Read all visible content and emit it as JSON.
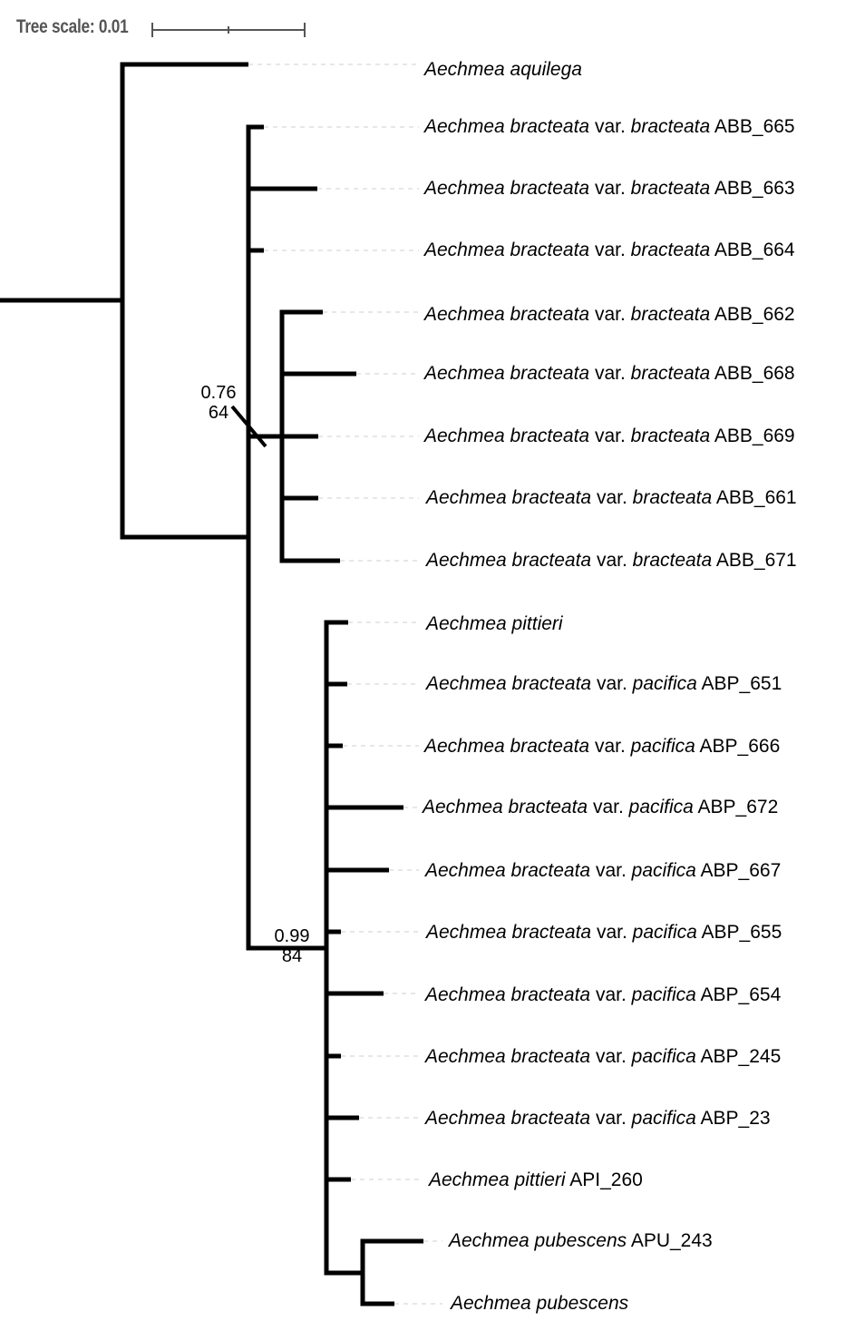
{
  "scale": {
    "label": "Tree scale: 0.01"
  },
  "support_labels": [
    {
      "posterior": "0.76",
      "bootstrap": "64"
    },
    {
      "posterior": "0.99",
      "bootstrap": "84"
    }
  ],
  "leaves": [
    {
      "genus_species": "Aechmea aquilega",
      "var_label": "",
      "variety": "",
      "code": ""
    },
    {
      "genus_species": "Aechmea bracteata",
      "var_label": " var. ",
      "variety": "bracteata",
      "code": " ABB_665"
    },
    {
      "genus_species": "Aechmea bracteata",
      "var_label": " var. ",
      "variety": "bracteata",
      "code": " ABB_663"
    },
    {
      "genus_species": "Aechmea bracteata",
      "var_label": " var. ",
      "variety": "bracteata",
      "code": " ABB_664"
    },
    {
      "genus_species": "Aechmea bracteata",
      "var_label": " var. ",
      "variety": "bracteata",
      "code": " ABB_662"
    },
    {
      "genus_species": "Aechmea bracteata",
      "var_label": " var. ",
      "variety": "bracteata",
      "code": " ABB_668"
    },
    {
      "genus_species": "Aechmea bracteata",
      "var_label": " var. ",
      "variety": "bracteata",
      "code": " ABB_669"
    },
    {
      "genus_species": "Aechmea bracteata",
      "var_label": " var. ",
      "variety": "bracteata",
      "code": " ABB_661"
    },
    {
      "genus_species": "Aechmea bracteata",
      "var_label": " var. ",
      "variety": "bracteata",
      "code": " ABB_671"
    },
    {
      "genus_species": "Aechmea pittieri",
      "var_label": "",
      "variety": "",
      "code": ""
    },
    {
      "genus_species": "Aechmea bracteata",
      "var_label": " var. ",
      "variety": "pacifica",
      "code": " ABP_651"
    },
    {
      "genus_species": "Aechmea bracteata",
      "var_label": " var. ",
      "variety": "pacifica",
      "code": " ABP_666"
    },
    {
      "genus_species": "Aechmea bracteata",
      "var_label": " var. ",
      "variety": "pacifica",
      "code": " ABP_672"
    },
    {
      "genus_species": "Aechmea bracteata",
      "var_label": " var. ",
      "variety": "pacifica",
      "code": " ABP_667"
    },
    {
      "genus_species": "Aechmea bracteata",
      "var_label": " var. ",
      "variety": "pacifica",
      "code": " ABP_655"
    },
    {
      "genus_species": "Aechmea bracteata",
      "var_label": " var. ",
      "variety": "pacifica",
      "code": " ABP_654"
    },
    {
      "genus_species": "Aechmea bracteata",
      "var_label": " var. ",
      "variety": "pacifica",
      "code": " ABP_245"
    },
    {
      "genus_species": "Aechmea bracteata",
      "var_label": " var. ",
      "variety": "pacifica",
      "code": " ABP_23"
    },
    {
      "genus_species": "Aechmea pittieri",
      "var_label": "",
      "variety": "",
      "code": " API_260"
    },
    {
      "genus_species": "Aechmea pubescens",
      "var_label": "",
      "variety": "",
      "code": " APU_243"
    },
    {
      "genus_species": "Aechmea pubescens",
      "var_label": "",
      "variety": "",
      "code": ""
    }
  ]
}
